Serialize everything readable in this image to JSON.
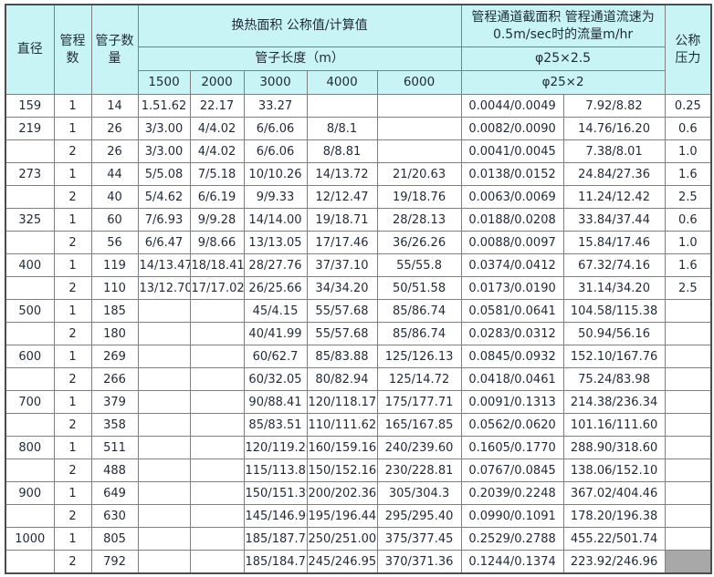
{
  "colors": {
    "header_bg": "#c9f4f5",
    "grid": "#7f7f7f",
    "grid_dark": "#4d4d4d",
    "text": "#1f2a38",
    "gray_cell": "#a8a8a8",
    "page_bg": "#ffffff"
  },
  "table": {
    "header": {
      "diameter": "直径",
      "passes_lines": [
        "管程",
        "数"
      ],
      "tube_count_lines": [
        "管子数",
        "量"
      ],
      "area_title": "换热面积 公称值/计算值",
      "tube_length_title": "管子长度（m）",
      "lengths": [
        "1500",
        "2000",
        "3000",
        "4000",
        "6000"
      ],
      "channel_lines": [
        "管程通道截面积 管程通道流速为",
        "0.5m/sec时的流量m/hr"
      ],
      "phi_row2": "φ25×2.5",
      "phi_row3": "φ25×2",
      "pressure_lines": [
        "公称",
        "压力"
      ]
    },
    "columns": [
      "diameter",
      "passes",
      "tube_count",
      "l1500",
      "l2000",
      "l3000",
      "l4000",
      "l6000",
      "cross_section",
      "flow_rate",
      "pressure"
    ],
    "rows": [
      [
        "159",
        "1",
        "14",
        "1.51.62",
        "22.17",
        "33.27",
        "",
        "",
        "0.0044/0.0049",
        "7.92/8.82",
        "0.25"
      ],
      [
        "219",
        "1",
        "26",
        "3/3.00",
        "4/4.02",
        "6/6.06",
        "8/8.1",
        "",
        "0.0082/0.0090",
        "14.76/16.20",
        "0.6"
      ],
      [
        "",
        "2",
        "26",
        "3/3.00",
        "4/4.02",
        "6/6.06",
        "8/8.81",
        "",
        "0.0041/0.0045",
        "7.38/8.01",
        "1.0"
      ],
      [
        "273",
        "1",
        "44",
        "5/5.08",
        "7/5.18",
        "10/10.26",
        "14/13.72",
        "21/20.63",
        "0.0138/0.0152",
        "24.84/27.36",
        "1.6"
      ],
      [
        "",
        "2",
        "40",
        "5/4.62",
        "6/6.19",
        "9/9.33",
        "12/12.47",
        "19/18.76",
        "0.0063/0.0069",
        "11.24/12.42",
        "2.5"
      ],
      [
        "325",
        "1",
        "60",
        "7/6.93",
        "9/9.28",
        "14/14.00",
        "19/18.71",
        "28/28.13",
        "0.0188/0.0208",
        "33.84/37.44",
        "0.6"
      ],
      [
        "",
        "2",
        "56",
        "6/6.47",
        "9/8.66",
        "13/13.05",
        "17/17.46",
        "36/26.26",
        "0.0088/0.0097",
        "15.84/17.46",
        "1.0"
      ],
      [
        "400",
        "1",
        "119",
        "14/13.47",
        "18/18.41",
        "28/27.76",
        "37/37.10",
        "55/55.8",
        "0.0374/0.0412",
        "67.32/74.16",
        "1.6"
      ],
      [
        "",
        "2",
        "110",
        "13/12.70",
        "17/17.02",
        "26/25.66",
        "34/34.20",
        "50/51.58",
        "0.0173/0.0190",
        "31.14/34.20",
        "2.5"
      ],
      [
        "500",
        "1",
        "185",
        "",
        "",
        "45/4.15",
        "55/57.68",
        "85/86.74",
        "0.0581/0.0641",
        "104.58/115.38",
        ""
      ],
      [
        "",
        "2",
        "180",
        "",
        "",
        "40/41.99",
        "55/57.68",
        "85/86.74",
        "0.0283/0.0312",
        "50.94/56.16",
        ""
      ],
      [
        "600",
        "1",
        "269",
        "",
        "",
        "60/62.7",
        "85/83.88",
        "125/126.13",
        "0.0845/0.0932",
        "152.10/167.76",
        ""
      ],
      [
        "",
        "2",
        "266",
        "",
        "",
        "60/32.05",
        "80/82.94",
        "125/14.72",
        "0.0418/0.0461",
        "75.24/83.98",
        ""
      ],
      [
        "700",
        "1",
        "379",
        "",
        "",
        "90/88.41",
        "120/118.17",
        "175/177.71",
        "0.0091/0.1313",
        "214.38/236.34",
        ""
      ],
      [
        "",
        "2",
        "358",
        "",
        "",
        "85/83.51",
        "110/111.62",
        "165/167.85",
        "0.0562/0.0620",
        "101.16/111.60",
        ""
      ],
      [
        "800",
        "1",
        "511",
        "",
        "",
        "120/119.20",
        "160/159.16",
        "240/239.60",
        "0.1605/0.1770",
        "288.90/318.60",
        ""
      ],
      [
        "",
        "2",
        "488",
        "",
        "",
        "115/113.83",
        "150/152.16",
        "230/228.81",
        "0.0767/0.0845",
        "138.06/152.10",
        ""
      ],
      [
        "900",
        "1",
        "649",
        "",
        "",
        "150/151.39",
        "200/202.36",
        "305/304.3",
        "0.2039/0.2248",
        "367.02/404.46",
        ""
      ],
      [
        "",
        "2",
        "630",
        "",
        "",
        "145/146.96",
        "195/196.44",
        "295/295.40",
        "0.0990/0.1091",
        "178.20/196.38",
        ""
      ],
      [
        "1000",
        "1",
        "805",
        "",
        "",
        "185/187.78",
        "250/251.00",
        "375/377.45",
        "0.2529/0.2788",
        "455.22/501.74",
        ""
      ],
      [
        "",
        "2",
        "792",
        "",
        "",
        "185/184.75",
        "245/246.95",
        "370/371.36",
        "0.1244/0.1374",
        "223.92/246.96",
        ""
      ]
    ],
    "gray_cell": {
      "row_index": 20,
      "col_index": 10
    }
  }
}
